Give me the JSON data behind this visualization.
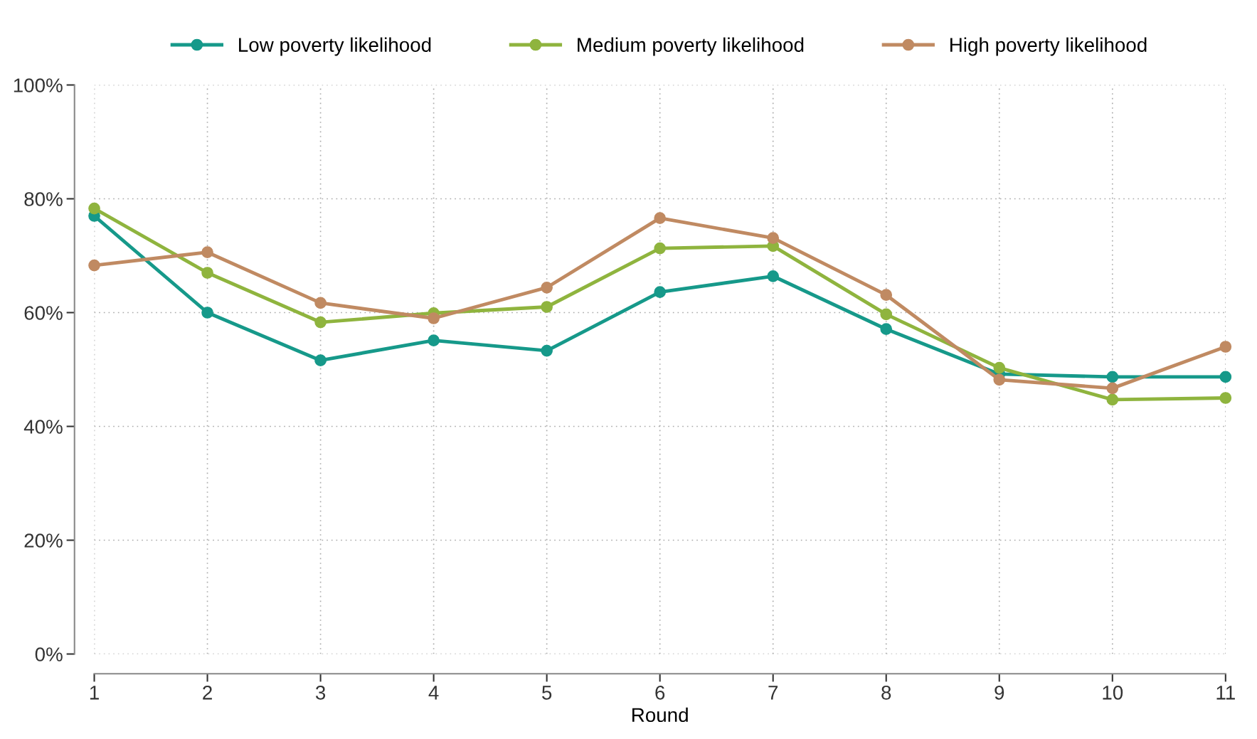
{
  "chart_data": {
    "type": "line",
    "xlabel": "Round",
    "x": [
      1,
      2,
      3,
      4,
      5,
      6,
      7,
      8,
      9,
      10,
      11
    ],
    "series": [
      {
        "name": "Low poverty likelihood",
        "color": "#16998a",
        "values": [
          77,
          60,
          51.6,
          55.1,
          53.3,
          63.6,
          66.4,
          57.1,
          49.2,
          48.7,
          48.7
        ]
      },
      {
        "name": "Medium poverty likelihood",
        "color": "#8fb43e",
        "values": [
          78.3,
          67,
          58.3,
          59.9,
          61,
          71.3,
          71.7,
          59.7,
          50.3,
          44.7,
          45
        ]
      },
      {
        "name": "High poverty likelihood",
        "color": "#c08a62",
        "values": [
          68.3,
          70.6,
          61.7,
          59,
          64.4,
          76.6,
          73.1,
          63.1,
          48.2,
          46.7,
          54
        ]
      }
    ],
    "xlim": [
      1,
      11
    ],
    "xticks": [
      1,
      2,
      3,
      4,
      5,
      6,
      7,
      8,
      9,
      10,
      11
    ],
    "ylim": [
      0,
      100
    ],
    "yticks": [
      {
        "value": 0,
        "label": "0%"
      },
      {
        "value": 20,
        "label": "20%"
      },
      {
        "value": 40,
        "label": "40%"
      },
      {
        "value": 60,
        "label": "60%"
      },
      {
        "value": 80,
        "label": "80%"
      },
      {
        "value": 100,
        "label": "100%"
      }
    ],
    "grid": true,
    "legend": "top",
    "marker": "circle",
    "line_style": "solid"
  }
}
